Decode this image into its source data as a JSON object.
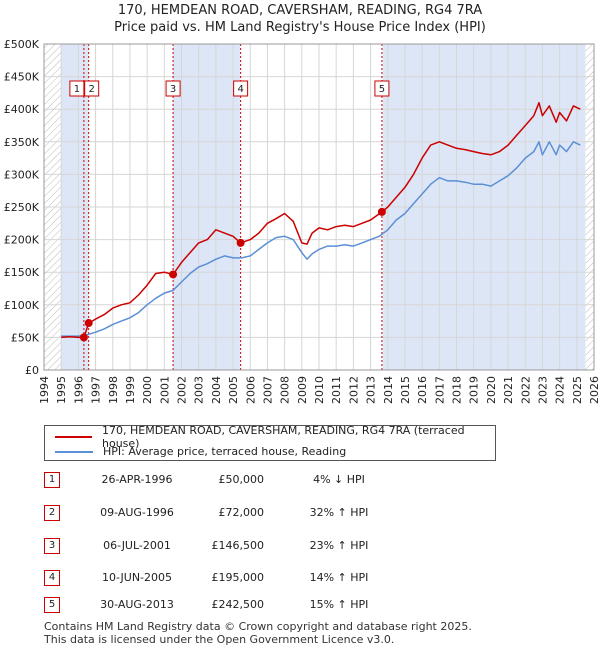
{
  "title_line1": "170, HEMDEAN ROAD, CAVERSHAM, READING, RG4 7RA",
  "title_line2": "Price paid vs. HM Land Registry's House Price Index (HPI)",
  "colors": {
    "price_line": "#cc0000",
    "hpi_line": "#5b8fd6",
    "shade": "#dde6f7",
    "grid": "#d6d6d6",
    "marker_border": "#cc0000"
  },
  "chart_data": {
    "type": "line",
    "xlim": [
      1994,
      2026
    ],
    "ylim": [
      0,
      500000
    ],
    "yticks": [
      0,
      50000,
      100000,
      150000,
      200000,
      250000,
      300000,
      350000,
      400000,
      450000,
      500000
    ],
    "ytick_labels": [
      "£0",
      "£50K",
      "£100K",
      "£150K",
      "£200K",
      "£250K",
      "£300K",
      "£350K",
      "£400K",
      "£450K",
      "£500K"
    ],
    "xticks": [
      1994,
      1995,
      1996,
      1997,
      1998,
      1999,
      2000,
      2001,
      2002,
      2003,
      2004,
      2005,
      2006,
      2007,
      2008,
      2009,
      2010,
      2011,
      2012,
      2013,
      2014,
      2015,
      2016,
      2017,
      2018,
      2019,
      2020,
      2021,
      2022,
      2023,
      2024,
      2025,
      2026
    ],
    "xtick_labels": [
      "1994",
      "1995",
      "1996",
      "1997",
      "1998",
      "1999",
      "2000",
      "2001",
      "2002",
      "2003",
      "2004",
      "2005",
      "2006",
      "2007",
      "2008",
      "2009",
      "2010",
      "2011",
      "2012",
      "2013",
      "2014",
      "2015",
      "2016",
      "2017",
      "2018",
      "2019",
      "2020",
      "2021",
      "2022",
      "2023",
      "2024",
      "2025",
      "2026"
    ],
    "grid": true,
    "shaded_ranges": [
      [
        1995.0,
        1996.6
      ],
      [
        2001.5,
        2005.4
      ],
      [
        2013.7,
        2025.5
      ]
    ],
    "hatched_ranges": [
      [
        1994.0,
        1995.0
      ],
      [
        2025.5,
        2026.0
      ]
    ],
    "series": [
      {
        "name": "170, HEMDEAN ROAD, CAVERSHAM, READING, RG4 7RA (terraced house)",
        "color": "#cc0000",
        "x": [
          1995.0,
          1995.5,
          1996.0,
          1996.32,
          1996.6,
          1997.0,
          1997.5,
          1998.0,
          1998.5,
          1999.0,
          1999.5,
          2000.0,
          2000.5,
          2001.0,
          2001.51,
          2002.0,
          2002.5,
          2003.0,
          2003.5,
          2004.0,
          2004.5,
          2005.0,
          2005.44,
          2006.0,
          2006.5,
          2007.0,
          2007.5,
          2008.0,
          2008.5,
          2009.0,
          2009.3,
          2009.6,
          2010.0,
          2010.5,
          2011.0,
          2011.5,
          2012.0,
          2012.5,
          2013.0,
          2013.66,
          2014.0,
          2014.5,
          2015.0,
          2015.5,
          2016.0,
          2016.5,
          2017.0,
          2017.5,
          2018.0,
          2018.5,
          2019.0,
          2019.5,
          2020.0,
          2020.5,
          2021.0,
          2021.5,
          2022.0,
          2022.5,
          2022.8,
          2023.0,
          2023.4,
          2023.8,
          2024.0,
          2024.4,
          2024.8,
          2025.2
        ],
        "y": [
          50000,
          51000,
          50000,
          50000,
          72000,
          78000,
          85000,
          95000,
          100000,
          103000,
          115000,
          130000,
          148000,
          150000,
          146500,
          165000,
          180000,
          195000,
          200000,
          215000,
          210000,
          205000,
          195000,
          200000,
          210000,
          225000,
          232000,
          240000,
          228000,
          195000,
          193000,
          210000,
          218000,
          215000,
          220000,
          222000,
          220000,
          225000,
          230000,
          242500,
          250000,
          265000,
          280000,
          300000,
          325000,
          345000,
          350000,
          345000,
          340000,
          338000,
          335000,
          332000,
          330000,
          335000,
          345000,
          360000,
          375000,
          390000,
          410000,
          390000,
          405000,
          380000,
          395000,
          382000,
          405000,
          400000
        ]
      },
      {
        "name": "HPI: Average price, terraced house, Reading",
        "color": "#5b8fd6",
        "x": [
          1995.0,
          1995.5,
          1996.0,
          1996.5,
          1997.0,
          1997.5,
          1998.0,
          1998.5,
          1999.0,
          1999.5,
          2000.0,
          2000.5,
          2001.0,
          2001.5,
          2002.0,
          2002.5,
          2003.0,
          2003.5,
          2004.0,
          2004.5,
          2005.0,
          2005.5,
          2006.0,
          2006.5,
          2007.0,
          2007.5,
          2008.0,
          2008.5,
          2009.0,
          2009.3,
          2009.6,
          2010.0,
          2010.5,
          2011.0,
          2011.5,
          2012.0,
          2012.5,
          2013.0,
          2013.5,
          2014.0,
          2014.5,
          2015.0,
          2015.5,
          2016.0,
          2016.5,
          2017.0,
          2017.5,
          2018.0,
          2018.5,
          2019.0,
          2019.5,
          2020.0,
          2020.5,
          2021.0,
          2021.5,
          2022.0,
          2022.5,
          2022.8,
          2023.0,
          2023.4,
          2023.8,
          2024.0,
          2024.4,
          2024.8,
          2025.2
        ],
        "y": [
          52000,
          52000,
          52000,
          54000,
          58000,
          63000,
          70000,
          75000,
          80000,
          88000,
          100000,
          110000,
          118000,
          122000,
          135000,
          148000,
          158000,
          163000,
          170000,
          175000,
          172000,
          172000,
          175000,
          185000,
          195000,
          203000,
          205000,
          200000,
          180000,
          170000,
          178000,
          185000,
          190000,
          190000,
          192000,
          190000,
          195000,
          200000,
          205000,
          215000,
          230000,
          240000,
          255000,
          270000,
          285000,
          295000,
          290000,
          290000,
          288000,
          285000,
          285000,
          282000,
          290000,
          298000,
          310000,
          325000,
          335000,
          350000,
          330000,
          350000,
          330000,
          345000,
          335000,
          350000,
          345000
        ]
      }
    ],
    "sales": [
      {
        "id": "1",
        "x": 1996.32,
        "y": 50000
      },
      {
        "id": "2",
        "x": 1996.6,
        "y": 72000
      },
      {
        "id": "3",
        "x": 2001.51,
        "y": 146500
      },
      {
        "id": "4",
        "x": 2005.44,
        "y": 195000
      },
      {
        "id": "5",
        "x": 2013.66,
        "y": 242500
      }
    ]
  },
  "legend": {
    "price_label": "170, HEMDEAN ROAD, CAVERSHAM, READING, RG4 7RA (terraced house)",
    "hpi_label": "HPI: Average price, terraced house, Reading"
  },
  "transactions": [
    {
      "num": "1",
      "date": "26-APR-1996",
      "price": "£50,000",
      "hpi": "4% ↓ HPI"
    },
    {
      "num": "2",
      "date": "09-AUG-1996",
      "price": "£72,000",
      "hpi": "32% ↑ HPI"
    },
    {
      "num": "3",
      "date": "06-JUL-2001",
      "price": "£146,500",
      "hpi": "23% ↑ HPI"
    },
    {
      "num": "4",
      "date": "10-JUN-2005",
      "price": "£195,000",
      "hpi": "14% ↑ HPI"
    },
    {
      "num": "5",
      "date": "30-AUG-2013",
      "price": "£242,500",
      "hpi": "15% ↑ HPI"
    }
  ],
  "footer": {
    "line1": "Contains HM Land Registry data © Crown copyright and database right 2025.",
    "line2": "This data is licensed under the Open Government Licence v3.0."
  }
}
